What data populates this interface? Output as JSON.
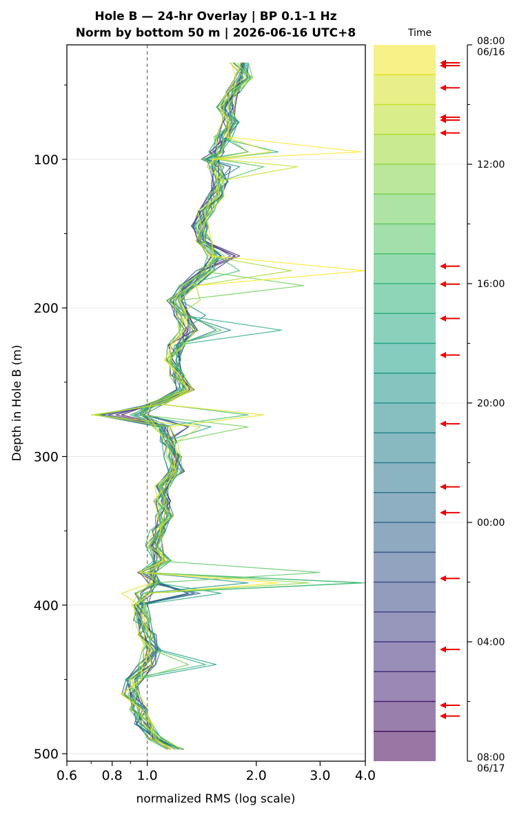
{
  "chart_data": {
    "type": "line",
    "title_line1": "Hole B — 24-hr Overlay  |  BP 0.1–1 Hz",
    "title_line2": "Norm by bottom 50 m  |  2026-06-16 UTC+8",
    "xlabel": "normalized RMS  (log scale)",
    "ylabel": "Depth in Hole B (m)",
    "x_scale": "log",
    "xlim": [
      0.6,
      4.0
    ],
    "ylim": [
      505,
      23
    ],
    "x_ticks": [
      {
        "value": 0.6,
        "label": "0.6"
      },
      {
        "value": 0.8,
        "label": "0.8"
      },
      {
        "value": 1.0,
        "label": "1.0"
      },
      {
        "value": 2.0,
        "label": "2.0"
      },
      {
        "value": 3.0,
        "label": "3.0"
      },
      {
        "value": 4.0,
        "label": "4.0"
      }
    ],
    "y_ticks": [
      {
        "value": 100,
        "label": "100"
      },
      {
        "value": 200,
        "label": "200"
      },
      {
        "value": 300,
        "label": "300"
      },
      {
        "value": 400,
        "label": "400"
      },
      {
        "value": 500,
        "label": "500"
      }
    ],
    "reference_line": {
      "x": 1.0,
      "style": "dashed",
      "color": "#777777"
    },
    "grid": "horizontal-only",
    "depths": [
      35,
      45,
      55,
      65,
      75,
      85,
      95,
      100,
      105,
      115,
      125,
      135,
      145,
      155,
      165,
      175,
      185,
      195,
      205,
      215,
      225,
      235,
      245,
      255,
      265,
      272,
      280,
      290,
      300,
      310,
      320,
      330,
      340,
      350,
      360,
      370,
      378,
      385,
      392,
      400,
      410,
      420,
      430,
      440,
      450,
      460,
      470,
      480,
      490,
      497
    ],
    "median_profile": [
      1.8,
      1.85,
      1.75,
      1.65,
      1.7,
      1.62,
      1.55,
      1.5,
      1.55,
      1.6,
      1.55,
      1.45,
      1.4,
      1.45,
      1.55,
      1.45,
      1.3,
      1.2,
      1.25,
      1.3,
      1.2,
      1.18,
      1.22,
      1.28,
      1.05,
      0.95,
      1.1,
      1.15,
      1.18,
      1.2,
      1.1,
      1.1,
      1.12,
      1.08,
      1.05,
      1.1,
      1.0,
      1.05,
      0.98,
      0.95,
      0.97,
      1.0,
      1.03,
      1.0,
      0.92,
      0.9,
      0.95,
      0.98,
      1.05,
      1.2
    ],
    "series": [
      {
        "time": "08:00",
        "spikes": [
          [
            95,
            3.9
          ],
          [
            175,
            4.0
          ],
          [
            385,
            2.3
          ]
        ]
      },
      {
        "time": "08:30",
        "spikes": [
          [
            95,
            2.2
          ],
          [
            272,
            2.1
          ],
          [
            392,
            0.85
          ]
        ]
      },
      {
        "time": "09:00",
        "spikes": [
          [
            105,
            2.6
          ],
          [
            272,
            0.7
          ],
          [
            280,
            1.4
          ]
        ]
      },
      {
        "time": "09:30",
        "spikes": [
          [
            175,
            2.5
          ],
          [
            272,
            0.72
          ],
          [
            200,
            1.4
          ]
        ]
      },
      {
        "time": "10:00",
        "spikes": [
          [
            95,
            1.9
          ],
          [
            385,
            2.8
          ]
        ]
      },
      {
        "time": "10:30",
        "spikes": [
          [
            185,
            2.7
          ],
          [
            280,
            1.9
          ],
          [
            440,
            1.3
          ]
        ]
      },
      {
        "time": "11:00",
        "spikes": [
          [
            105,
            2.1
          ],
          [
            215,
            1.6
          ],
          [
            378,
            3.0
          ]
        ]
      },
      {
        "time": "11:30",
        "spikes": [
          [
            175,
            1.8
          ],
          [
            272,
            1.9
          ],
          [
            385,
            4.0
          ]
        ]
      },
      {
        "time": "12:00",
        "spikes": [
          [
            95,
            2.3
          ],
          [
            385,
            3.9
          ],
          [
            440,
            1.45
          ]
        ]
      },
      {
        "time": "12:30",
        "spikes": [
          [
            215,
            2.35
          ],
          [
            392,
            1.6
          ]
        ]
      },
      {
        "time": "13:00",
        "spikes": [
          [
            95,
            1.9
          ],
          [
            280,
            1.5
          ],
          [
            440,
            1.55
          ]
        ]
      },
      {
        "time": "13:30",
        "spikes": [
          [
            205,
            1.45
          ],
          [
            385,
            1.9
          ]
        ]
      },
      {
        "time": "14:00",
        "spikes": [
          [
            105,
            1.8
          ],
          [
            215,
            1.7
          ],
          [
            392,
            1.3
          ]
        ]
      },
      {
        "time": "14:30",
        "spikes": [
          [
            215,
            1.55
          ],
          [
            272,
            0.72
          ]
        ]
      },
      {
        "time": "15:00",
        "spikes": [
          [
            105,
            1.7
          ],
          [
            392,
            1.4
          ]
        ]
      },
      {
        "time": "15:30",
        "spikes": [
          [
            165,
            1.6
          ],
          [
            272,
            0.74
          ]
        ]
      },
      {
        "time": "16:00",
        "spikes": [
          [
            392,
            1.3
          ],
          [
            280,
            1.3
          ]
        ]
      },
      {
        "time": "16:30",
        "spikes": [
          [
            165,
            1.7
          ],
          [
            272,
            0.75
          ]
        ]
      },
      {
        "time": "17:00",
        "spikes": [
          [
            392,
            1.35
          ],
          [
            105,
            1.7
          ]
        ]
      },
      {
        "time": "17:30",
        "spikes": [
          [
            165,
            1.75
          ],
          [
            272,
            0.78
          ]
        ]
      },
      {
        "time": "18:00",
        "spikes": [
          [
            280,
            1.3
          ],
          [
            392,
            1.3
          ]
        ]
      },
      {
        "time": "18:30",
        "spikes": [
          [
            165,
            1.8
          ],
          [
            272,
            0.82
          ]
        ]
      },
      {
        "time": "19:00",
        "spikes": [
          [
            392,
            1.3
          ]
        ]
      },
      {
        "time": "19:30",
        "spikes": [
          [
            165,
            1.75
          ],
          [
            272,
            0.85
          ]
        ]
      }
    ],
    "colorbar": {
      "label": "Time",
      "ticks": [
        {
          "label": "08:00",
          "sub": "06/16",
          "frac": 0
        },
        {
          "label": "12:00",
          "sub": "",
          "frac": 0.1667
        },
        {
          "label": "16:00",
          "sub": "",
          "frac": 0.3333
        },
        {
          "label": "20:00",
          "sub": "",
          "frac": 0.5
        },
        {
          "label": "00:00",
          "sub": "",
          "frac": 0.6667
        },
        {
          "label": "04:00",
          "sub": "",
          "frac": 0.8333
        },
        {
          "label": "08:00",
          "sub": "06/17",
          "frac": 1
        }
      ],
      "n_bands": 24,
      "event_arrows_frac": [
        0.025,
        0.029,
        0.06,
        0.101,
        0.105,
        0.123,
        0.309,
        0.334,
        0.382,
        0.433,
        0.529,
        0.617,
        0.653,
        0.745,
        0.844,
        0.922,
        0.937
      ],
      "arrow_color": "#ee0000"
    },
    "colormap": [
      "#440154",
      "#482878",
      "#3e4989",
      "#31688e",
      "#26828e",
      "#1f9e89",
      "#35b779",
      "#6ece58",
      "#b5de2b",
      "#fde725"
    ]
  }
}
